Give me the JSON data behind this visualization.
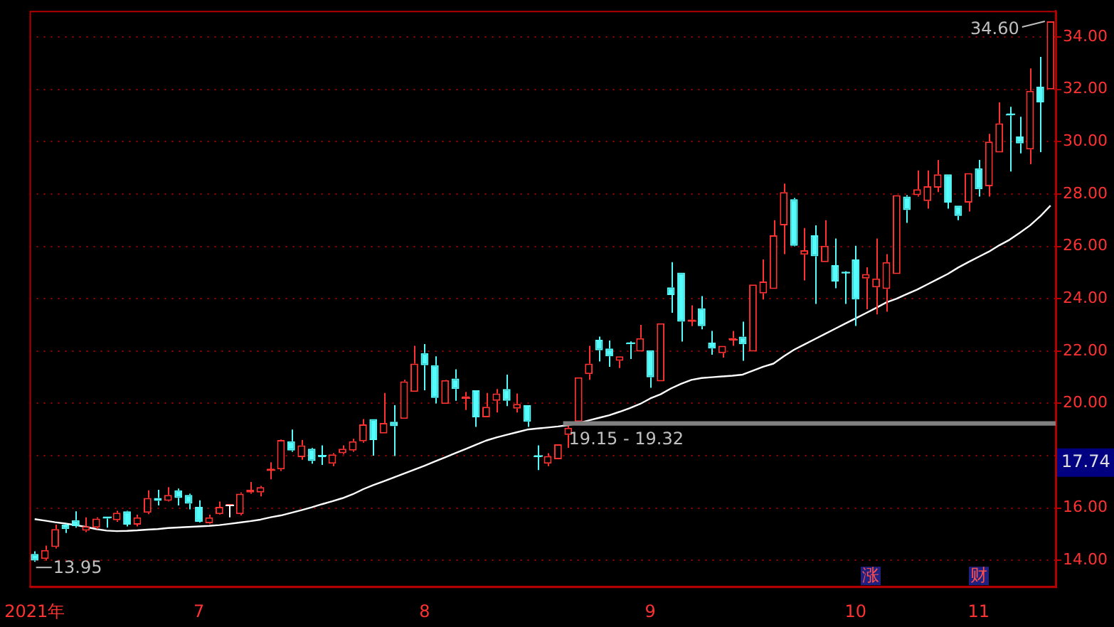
{
  "chart_data": {
    "type": "candlestick",
    "categories": [
      "2021年",
      null,
      null,
      null,
      null,
      null,
      null,
      null,
      null,
      null,
      null,
      null,
      null,
      null,
      null,
      null,
      "7",
      null,
      null,
      null,
      null,
      null,
      null,
      null,
      null,
      null,
      null,
      null,
      null,
      null,
      null,
      null,
      null,
      null,
      null,
      null,
      null,
      null,
      "8",
      null,
      null,
      null,
      null,
      null,
      null,
      null,
      null,
      null,
      null,
      null,
      null,
      null,
      null,
      null,
      null,
      null,
      null,
      null,
      null,
      null,
      "9",
      null,
      null,
      null,
      null,
      null,
      null,
      null,
      null,
      null,
      null,
      null,
      null,
      null,
      null,
      null,
      null,
      null,
      null,
      null,
      "10",
      null,
      null,
      null,
      null,
      null,
      null,
      null,
      null,
      null,
      null,
      null,
      "11",
      null,
      null,
      null,
      null,
      null,
      null,
      null
    ],
    "ohlc": [
      [
        14.25,
        14.35,
        13.95,
        14.0
      ],
      [
        14.06,
        14.57,
        14.0,
        14.4
      ],
      [
        14.51,
        15.37,
        14.46,
        15.2
      ],
      [
        15.37,
        15.4,
        15.05,
        15.2
      ],
      [
        15.54,
        15.88,
        15.25,
        15.31
      ],
      [
        15.14,
        15.65,
        15.08,
        15.31
      ],
      [
        15.25,
        15.65,
        15.2,
        15.6
      ],
      [
        15.65,
        15.65,
        15.25,
        15.6
      ],
      [
        15.54,
        15.9,
        15.48,
        15.82
      ],
      [
        15.88,
        15.9,
        15.3,
        15.37
      ],
      [
        15.37,
        15.75,
        15.3,
        15.65
      ],
      [
        15.82,
        16.68,
        15.77,
        16.39
      ],
      [
        16.39,
        16.7,
        16.1,
        16.28
      ],
      [
        16.28,
        16.8,
        16.25,
        16.5
      ],
      [
        16.68,
        16.75,
        16.1,
        16.39
      ],
      [
        16.5,
        16.55,
        15.95,
        16.17
      ],
      [
        16.05,
        16.3,
        15.45,
        15.48
      ],
      [
        15.42,
        15.75,
        15.4,
        15.65
      ],
      [
        15.77,
        16.25,
        15.75,
        16.05
      ],
      [
        16.1,
        16.1,
        15.65,
        16.1
      ],
      [
        15.77,
        16.6,
        15.72,
        16.55
      ],
      [
        16.6,
        17.0,
        16.55,
        16.7
      ],
      [
        16.6,
        16.85,
        16.45,
        16.8
      ],
      [
        17.45,
        17.75,
        17.1,
        17.48
      ],
      [
        17.48,
        18.62,
        17.42,
        18.6
      ],
      [
        18.55,
        19.0,
        18.15,
        18.2
      ],
      [
        17.95,
        18.6,
        17.85,
        18.4
      ],
      [
        18.27,
        18.3,
        17.7,
        17.8
      ],
      [
        18.0,
        18.4,
        17.65,
        17.95
      ],
      [
        17.7,
        18.1,
        17.6,
        18.05
      ],
      [
        18.1,
        18.4,
        18.05,
        18.27
      ],
      [
        18.2,
        18.65,
        18.15,
        18.55
      ],
      [
        18.55,
        19.4,
        18.5,
        19.2
      ],
      [
        19.4,
        19.4,
        18.0,
        18.6
      ],
      [
        18.85,
        20.4,
        18.85,
        19.25
      ],
      [
        19.3,
        19.93,
        17.99,
        19.13
      ],
      [
        19.41,
        20.9,
        19.41,
        20.84
      ],
      [
        20.44,
        22.2,
        20.44,
        21.52
      ],
      [
        21.92,
        22.27,
        20.5,
        21.46
      ],
      [
        21.46,
        21.8,
        20.0,
        20.21
      ],
      [
        19.98,
        20.9,
        19.98,
        20.89
      ],
      [
        20.95,
        21.3,
        20.1,
        20.55
      ],
      [
        20.2,
        20.44,
        19.75,
        20.27
      ],
      [
        20.5,
        20.5,
        19.1,
        19.47
      ],
      [
        19.47,
        20.4,
        19.47,
        19.87
      ],
      [
        20.1,
        20.55,
        19.65,
        20.38
      ],
      [
        20.55,
        21.1,
        19.9,
        20.1
      ],
      [
        19.8,
        20.38,
        19.65,
        19.98
      ],
      [
        19.93,
        19.93,
        19.1,
        19.3
      ],
      [
        17.99,
        18.4,
        17.45,
        17.95
      ],
      [
        17.7,
        18.1,
        17.6,
        17.99
      ],
      [
        17.87,
        18.44,
        17.87,
        18.44
      ],
      [
        18.8,
        19.15,
        18.3,
        19.07
      ],
      [
        19.3,
        21.0,
        19.2,
        21.0
      ],
      [
        21.12,
        22.2,
        20.9,
        21.52
      ],
      [
        22.43,
        22.55,
        21.6,
        22.03
      ],
      [
        22.1,
        22.4,
        21.4,
        21.8
      ],
      [
        21.63,
        21.8,
        21.35,
        21.8
      ],
      [
        22.3,
        22.37,
        21.7,
        22.26
      ],
      [
        21.98,
        23.0,
        21.98,
        22.49
      ],
      [
        22.03,
        22.03,
        20.6,
        21.0
      ],
      [
        20.84,
        23.06,
        20.84,
        23.06
      ],
      [
        24.43,
        25.4,
        23.46,
        24.14
      ],
      [
        25.0,
        25.0,
        22.36,
        23.12
      ],
      [
        23.15,
        23.75,
        22.95,
        23.2
      ],
      [
        23.63,
        24.1,
        22.83,
        22.95
      ],
      [
        22.32,
        22.77,
        21.86,
        22.1
      ],
      [
        21.92,
        22.2,
        21.75,
        22.2
      ],
      [
        22.43,
        22.77,
        22.2,
        22.5
      ],
      [
        22.55,
        23.12,
        21.63,
        22.26
      ],
      [
        21.98,
        24.54,
        21.98,
        24.54
      ],
      [
        24.2,
        25.5,
        23.97,
        24.66
      ],
      [
        24.37,
        27.0,
        24.37,
        26.42
      ],
      [
        26.8,
        28.4,
        25.7,
        28.07
      ],
      [
        27.8,
        27.85,
        26.0,
        26.02
      ],
      [
        25.68,
        26.7,
        24.7,
        25.85
      ],
      [
        26.42,
        26.8,
        23.8,
        25.62
      ],
      [
        25.4,
        27.0,
        25.4,
        26.02
      ],
      [
        25.28,
        26.3,
        24.4,
        24.66
      ],
      [
        25.0,
        25.05,
        23.8,
        24.97
      ],
      [
        25.5,
        26.02,
        22.96,
        23.97
      ],
      [
        24.77,
        25.2,
        23.6,
        24.94
      ],
      [
        24.43,
        26.3,
        23.4,
        24.77
      ],
      [
        24.37,
        25.7,
        23.5,
        25.4
      ],
      [
        24.94,
        27.96,
        24.94,
        27.96
      ],
      [
        27.9,
        27.96,
        26.9,
        27.39
      ],
      [
        27.96,
        28.9,
        27.9,
        28.18
      ],
      [
        27.73,
        28.9,
        27.44,
        28.3
      ],
      [
        28.24,
        29.3,
        28.07,
        28.75
      ],
      [
        28.75,
        28.75,
        27.44,
        27.67
      ],
      [
        27.56,
        27.56,
        27.0,
        27.16
      ],
      [
        27.67,
        28.8,
        27.33,
        28.8
      ],
      [
        28.98,
        29.3,
        27.9,
        28.18
      ],
      [
        28.3,
        30.3,
        27.9,
        30.0
      ],
      [
        29.59,
        31.5,
        29.59,
        30.7
      ],
      [
        31.05,
        31.33,
        28.86,
        31.0
      ],
      [
        30.2,
        30.95,
        29.55,
        29.93
      ],
      [
        29.7,
        32.8,
        29.14,
        31.94
      ],
      [
        32.1,
        33.24,
        29.6,
        31.5
      ],
      [
        32.0,
        34.6,
        32.0,
        34.6
      ]
    ],
    "series": [
      {
        "type": "line",
        "color": "#ffffff",
        "values": [
          15.58,
          15.52,
          15.46,
          15.41,
          15.35,
          15.28,
          15.2,
          15.14,
          15.12,
          15.13,
          15.15,
          15.18,
          15.2,
          15.24,
          15.26,
          15.28,
          15.3,
          15.32,
          15.35,
          15.4,
          15.45,
          15.5,
          15.56,
          15.65,
          15.72,
          15.82,
          15.92,
          16.03,
          16.15,
          16.26,
          16.38,
          16.53,
          16.72,
          16.88,
          17.02,
          17.17,
          17.32,
          17.47,
          17.62,
          17.78,
          17.94,
          18.1,
          18.26,
          18.42,
          18.58,
          18.7,
          18.8,
          18.9,
          19.0,
          19.04,
          19.08,
          19.12,
          19.17,
          19.25,
          19.35,
          19.45,
          19.55,
          19.68,
          19.82,
          19.98,
          20.19,
          20.35,
          20.57,
          20.75,
          20.9,
          20.97,
          21.0,
          21.03,
          21.06,
          21.1,
          21.25,
          21.4,
          21.52,
          21.8,
          22.05,
          22.25,
          22.45,
          22.65,
          22.85,
          23.05,
          23.25,
          23.45,
          23.65,
          23.86,
          24.0,
          24.18,
          24.35,
          24.55,
          24.75,
          24.95,
          25.19,
          25.4,
          25.6,
          25.8,
          26.04,
          26.25,
          26.52,
          26.8,
          27.15,
          27.56
        ]
      }
    ],
    "ylim": [
      13,
      35
    ],
    "yticks": [
      {
        "value": 14,
        "label": "14.00"
      },
      {
        "value": 16,
        "label": "16.00"
      },
      {
        "value": 18,
        "label": null
      },
      {
        "value": 20,
        "label": "20.00"
      },
      {
        "value": 22,
        "label": "22.00"
      },
      {
        "value": 24,
        "label": "24.00"
      },
      {
        "value": 26,
        "label": "26.00"
      },
      {
        "value": 28,
        "label": "28.00"
      },
      {
        "value": 30,
        "label": "30.00"
      },
      {
        "value": 32,
        "label": "32.00"
      },
      {
        "value": 34,
        "label": "34.00"
      }
    ],
    "grid": "y",
    "bands": [
      {
        "axis": "y",
        "from": 19.15,
        "to": 19.32,
        "label": "19.15 - 19.32",
        "color": "#808080"
      }
    ],
    "annotations": [
      {
        "text": "13.95",
        "x": "2021年",
        "y": 13.95
      },
      "34.60",
      {
        "text": "17.74",
        "y": 17.74
      },
      "涨",
      "财"
    ]
  }
}
